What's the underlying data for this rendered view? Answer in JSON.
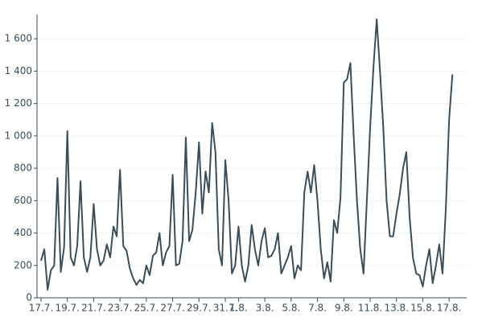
{
  "chart_data": {
    "type": "line",
    "categories": [
      "17.7.",
      null,
      null,
      null,
      null,
      null,
      null,
      null,
      "19.7.",
      null,
      null,
      null,
      null,
      null,
      null,
      null,
      "21.7.",
      null,
      null,
      null,
      null,
      null,
      null,
      null,
      "23.7.",
      null,
      null,
      null,
      null,
      null,
      null,
      null,
      "25.7.",
      null,
      null,
      null,
      null,
      null,
      null,
      null,
      "27.7.",
      null,
      null,
      null,
      null,
      null,
      null,
      null,
      "29.7.",
      null,
      null,
      null,
      null,
      null,
      null,
      null,
      "31.7.",
      null,
      null,
      null,
      "1.8.",
      null,
      null,
      null,
      null,
      null,
      null,
      null,
      "3.8.",
      null,
      null,
      null,
      null,
      null,
      null,
      null,
      "5.8.",
      null,
      null,
      null,
      null,
      null,
      null,
      null,
      "7.8.",
      null,
      null,
      null,
      null,
      null,
      null,
      null,
      "9.8.",
      null,
      null,
      null,
      null,
      null,
      null,
      null,
      "11.8.",
      null,
      null,
      null,
      null,
      null,
      null,
      null,
      "13.8.",
      null,
      null,
      null,
      null,
      null,
      null,
      null,
      "15.8.",
      null,
      null,
      null,
      null,
      null,
      null,
      null,
      "17.8.",
      null
    ],
    "values": [
      230,
      300,
      50,
      170,
      200,
      740,
      160,
      310,
      1030,
      250,
      200,
      320,
      720,
      250,
      160,
      250,
      580,
      300,
      200,
      230,
      330,
      250,
      440,
      380,
      790,
      320,
      290,
      180,
      120,
      80,
      110,
      90,
      200,
      140,
      260,
      280,
      400,
      200,
      280,
      320,
      760,
      200,
      210,
      350,
      990,
      350,
      420,
      650,
      960,
      520,
      780,
      650,
      1080,
      900,
      300,
      200,
      850,
      600,
      150,
      200,
      440,
      200,
      100,
      200,
      450,
      300,
      200,
      350,
      430,
      250,
      260,
      300,
      400,
      150,
      200,
      250,
      320,
      120,
      200,
      170,
      650,
      780,
      650,
      820,
      600,
      300,
      120,
      220,
      100,
      480,
      400,
      620,
      1330,
      1350,
      1450,
      1000,
      600,
      300,
      150,
      600,
      1050,
      1420,
      1720,
      1400,
      1050,
      600,
      380,
      380,
      520,
      640,
      800,
      900,
      500,
      250,
      150,
      140,
      70,
      200,
      300,
      90,
      200,
      330,
      150,
      550,
      1100,
      1380
    ],
    "color": "#3b4d5a",
    "ylim": [
      0,
      1750
    ],
    "yticks": [
      0,
      200,
      400,
      600,
      800,
      {
        "value": 1000,
        "label": "1 000"
      },
      {
        "value": 1200,
        "label": "1 200"
      },
      {
        "value": 1400,
        "label": "1 400"
      },
      {
        "value": 1600,
        "label": "1 600"
      }
    ],
    "grid": true
  }
}
